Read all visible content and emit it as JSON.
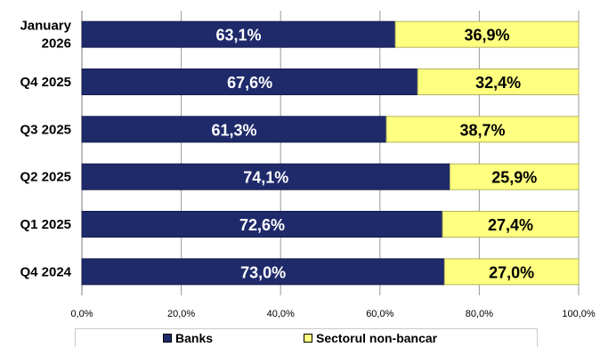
{
  "chart_data": {
    "type": "bar",
    "orientation": "horizontal",
    "stacked": true,
    "categories": [
      [
        "January",
        "2026"
      ],
      [
        "Q4 2025"
      ],
      [
        "Q3 2025"
      ],
      [
        "Q2 2025"
      ],
      [
        "Q1 2025"
      ],
      [
        "Q4 2024"
      ]
    ],
    "series": [
      {
        "name": "Banks",
        "color": "#1f2a6b",
        "values": [
          63.1,
          67.6,
          61.3,
          74.1,
          72.6,
          73.0
        ],
        "labels": [
          "63,1%",
          "67,6%",
          "61,3%",
          "74,1%",
          "72,6%",
          "73,0%"
        ]
      },
      {
        "name": "Sectorul non-bancar",
        "color": "#ffff80",
        "values": [
          36.9,
          32.4,
          38.7,
          25.9,
          27.4,
          27.0
        ],
        "labels": [
          "36,9%",
          "32,4%",
          "38,7%",
          "25,9%",
          "27,4%",
          "27,0%"
        ]
      }
    ],
    "xlim": [
      0,
      100
    ],
    "xticks": [
      0,
      20,
      40,
      60,
      80,
      100
    ],
    "xtick_labels": [
      "0,0%",
      "20,0%",
      "40,0%",
      "60,0%",
      "80,0%",
      "100,0%"
    ],
    "grid": true,
    "legend_position": "bottom",
    "title": "",
    "xlabel": "",
    "ylabel": ""
  },
  "colors": {
    "banks": "#1f2a6b",
    "nonbank": "#ffff80"
  }
}
